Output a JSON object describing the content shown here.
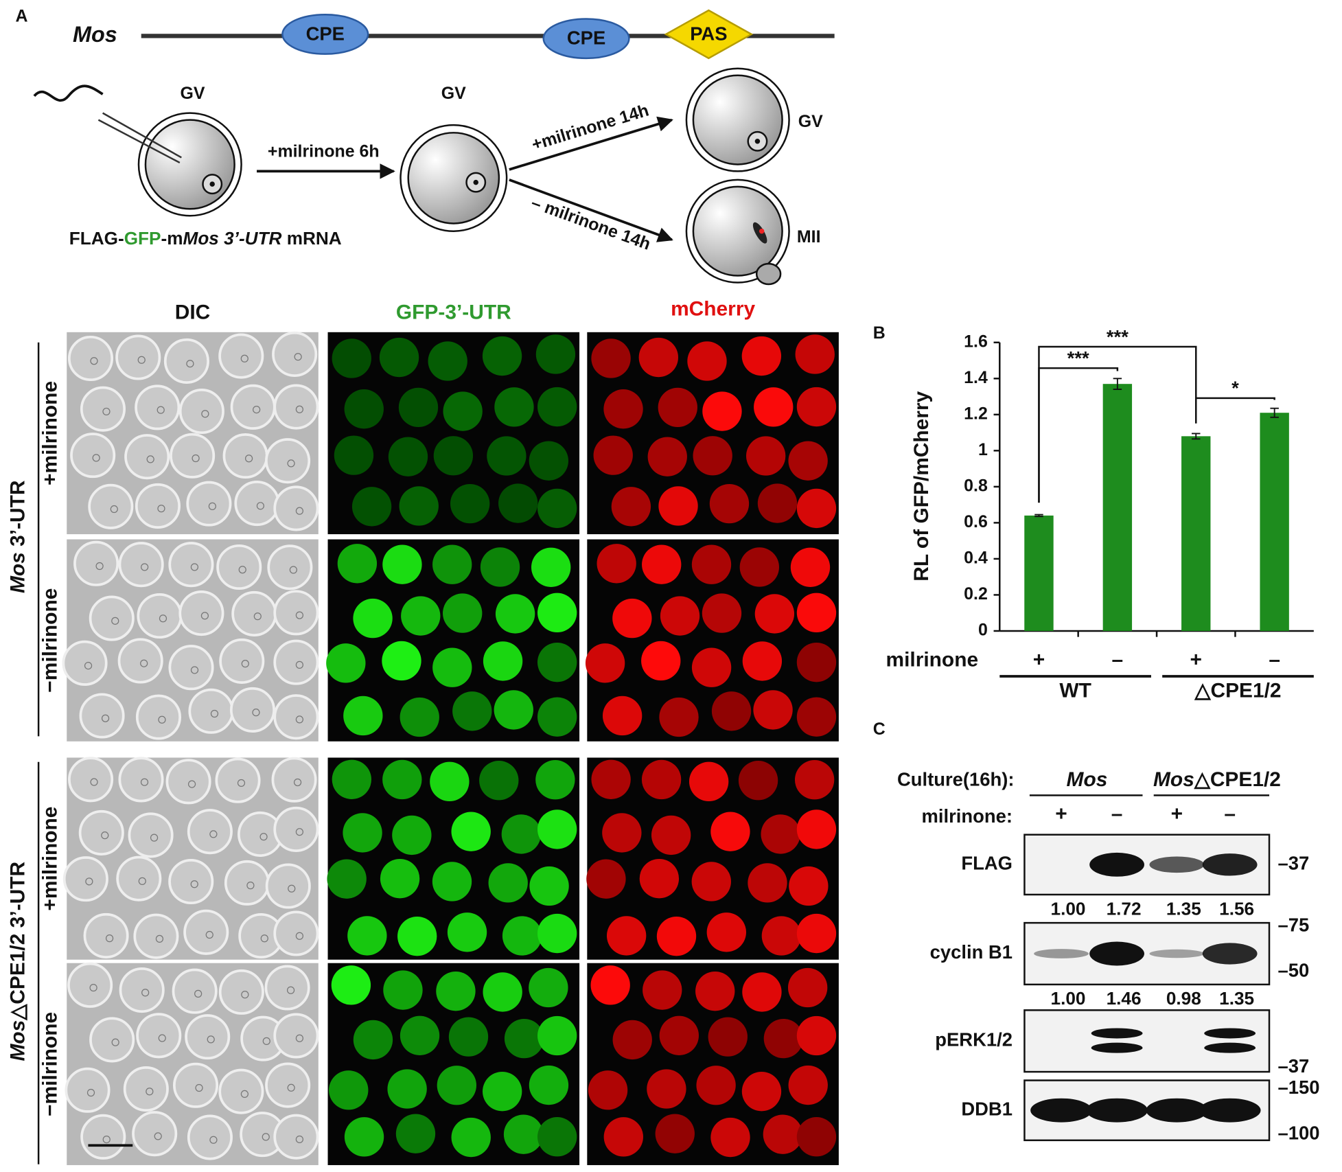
{
  "panel_a": {
    "label": "A",
    "gene": "Mos",
    "elements": [
      "CPE",
      "CPE",
      "PAS"
    ],
    "stage_labels": [
      "GV",
      "GV",
      "GV",
      "MII"
    ],
    "steps": [
      "+milrinone 6h",
      "+milrinone 14h",
      "– milrinone 14h"
    ],
    "injected": [
      "FLAG-",
      "GFP",
      "-m",
      "Mos 3’-UTR",
      " mRNA"
    ],
    "columns": [
      "DIC",
      "GFP-3’-UTR",
      "mCherry"
    ],
    "groups": [
      [
        "Mos",
        " 3’-UTR"
      ],
      [
        "Mos",
        "△CPE1/2  3’-UTR"
      ]
    ],
    "conditions": [
      "+milrinone",
      "−milrinone"
    ]
  },
  "chart_data": {
    "type": "bar",
    "panel_label": "B",
    "y_label": "RL of GFP/mCherry",
    "category_title": "milrinone",
    "categories": [
      "+",
      "–",
      "+",
      "–"
    ],
    "groups": [
      "WT",
      "△CPE1/2"
    ],
    "values": [
      0.64,
      1.37,
      1.08,
      1.21
    ],
    "errors": [
      0.005,
      0.03,
      0.015,
      0.025
    ],
    "color": "#1e8c1e",
    "ylim": [
      0,
      1.6
    ],
    "yticks": [
      0,
      0.2,
      0.4,
      0.6,
      0.8,
      1,
      1.2,
      1.4,
      1.6
    ],
    "annotations": [
      "***",
      "***",
      "*"
    ]
  },
  "panel_c": {
    "label": "C",
    "culture": "Culture(16h):",
    "construct_1": "Mos",
    "construct_2": [
      "Mos",
      "△CPE1/2"
    ],
    "treatment": "milrinone:",
    "signs": [
      "+",
      "–",
      "+",
      "–"
    ],
    "blots": [
      {
        "name": "FLAG",
        "quant": [
          "1.00",
          "1.72",
          "1.35",
          "1.56"
        ],
        "markers": [
          "–37"
        ]
      },
      {
        "name": "cyclin B1",
        "quant": [
          "1.00",
          "1.46",
          "0.98",
          "1.35"
        ],
        "markers": [
          "–75",
          "–50"
        ]
      },
      {
        "name": "pERK1/2",
        "markers": [
          "–37"
        ]
      },
      {
        "name": "DDB1",
        "markers": [
          "–150",
          "–100"
        ]
      }
    ]
  }
}
